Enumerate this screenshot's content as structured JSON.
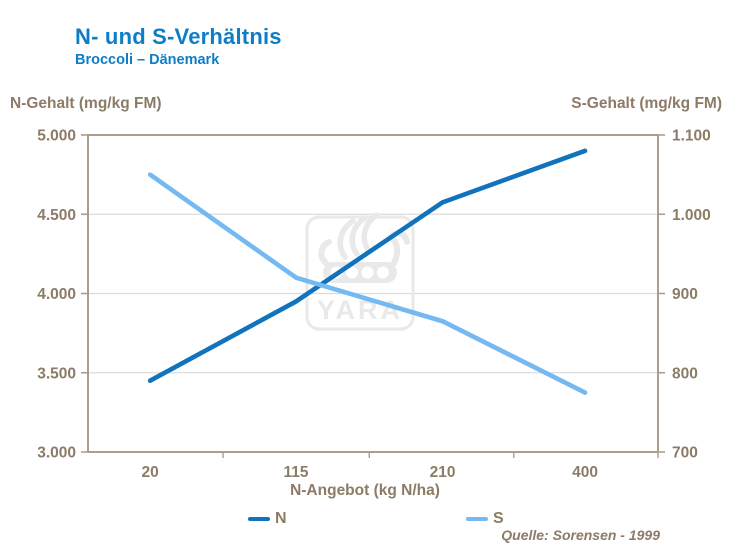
{
  "header": {
    "title": "N- und S-Verhältnis",
    "subtitle": "Broccoli – Dänemark"
  },
  "axis_titles": {
    "left": "N-Gehalt (mg/kg FM)",
    "right": "S-Gehalt (mg/kg FM)",
    "x": "N-Angebot (kg N/ha)"
  },
  "legend": {
    "items": [
      {
        "label": "N",
        "color": "#1273BD"
      },
      {
        "label": "S",
        "color": "#74B9F2"
      }
    ]
  },
  "source": "Quelle: Sorensen - 1999",
  "watermark_text": "YARA",
  "colors": {
    "title_blue": "#0E7DC8",
    "text_brown": "#8C7B66",
    "frame": "#AC9E8E",
    "grid": "#DCDCDC",
    "n_line": "#1273BD",
    "s_line": "#74B9F2",
    "watermark": "#E9E9E9",
    "background": "#FFFFFF"
  },
  "chart_data": {
    "type": "line",
    "title": "N- und S-Verhältnis",
    "subtitle": "Broccoli – Dänemark",
    "xlabel": "N-Angebot (kg N/ha)",
    "x_categories": [
      "20",
      "115",
      "210",
      "400"
    ],
    "grid": "horizontal only, at left-axis 3.500 / 4.000 / 4.500",
    "legend_position": "bottom",
    "left_axis": {
      "title": "N-Gehalt (mg/kg FM)",
      "min": 3000,
      "max": 5000,
      "tick_values": [
        5000,
        4500,
        4000,
        3500,
        3000
      ],
      "tick_labels": [
        "5.000",
        "4.500",
        "4.000",
        "3.500",
        "3.000"
      ]
    },
    "right_axis": {
      "title": "S-Gehalt (mg/kg FM)",
      "min": 700,
      "max": 1100,
      "tick_values": [
        1100,
        1000,
        900,
        800,
        700
      ],
      "tick_labels": [
        "1.100",
        "1.000",
        "900",
        "800",
        "700"
      ]
    },
    "series": [
      {
        "name": "N",
        "axis": "left",
        "color": "#1273BD",
        "values": [
          3450,
          3950,
          4575,
          4900
        ]
      },
      {
        "name": "S",
        "axis": "right",
        "color": "#74B9F2",
        "values": [
          1050,
          920,
          865,
          775
        ]
      }
    ]
  }
}
